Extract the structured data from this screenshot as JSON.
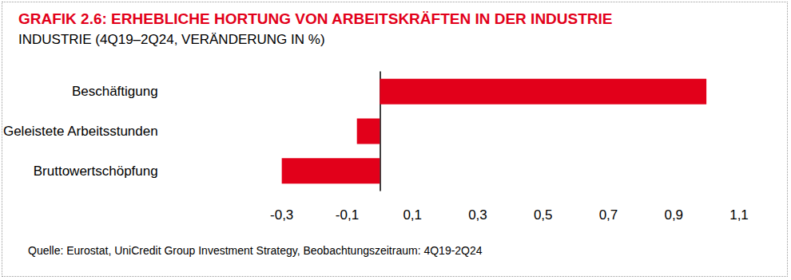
{
  "chart_data": {
    "type": "bar",
    "orientation": "horizontal",
    "title": "GRAFIK 2.6: ERHEBLICHE HORTUNG VON ARBEITSKRÄFTEN IN DER INDUSTRIE",
    "subtitle": "INDUSTRIE (4Q19–2Q24, VERÄNDERUNG IN %)",
    "source": "Quelle: Eurostat, UniCredit Group Investment Strategy, Beobachtungszeitraum: 4Q19-2Q24",
    "categories": [
      "Beschäftigung",
      "Geleistete Arbeitsstunden",
      "Bruttowertschöpfung"
    ],
    "values": [
      1.0,
      -0.07,
      -0.3
    ],
    "color": "#e2001a",
    "xlim": [
      -0.3,
      1.1
    ],
    "xticks": [
      {
        "value": -0.3,
        "label": "-0,3"
      },
      {
        "value": -0.1,
        "label": "-0,1"
      },
      {
        "value": 0.1,
        "label": "0,1"
      },
      {
        "value": 0.3,
        "label": "0,3"
      },
      {
        "value": 0.5,
        "label": "0,5"
      },
      {
        "value": 0.7,
        "label": "0,7"
      },
      {
        "value": 0.9,
        "label": "0,9"
      },
      {
        "value": 1.1,
        "label": "1,1"
      }
    ],
    "grid": false
  }
}
